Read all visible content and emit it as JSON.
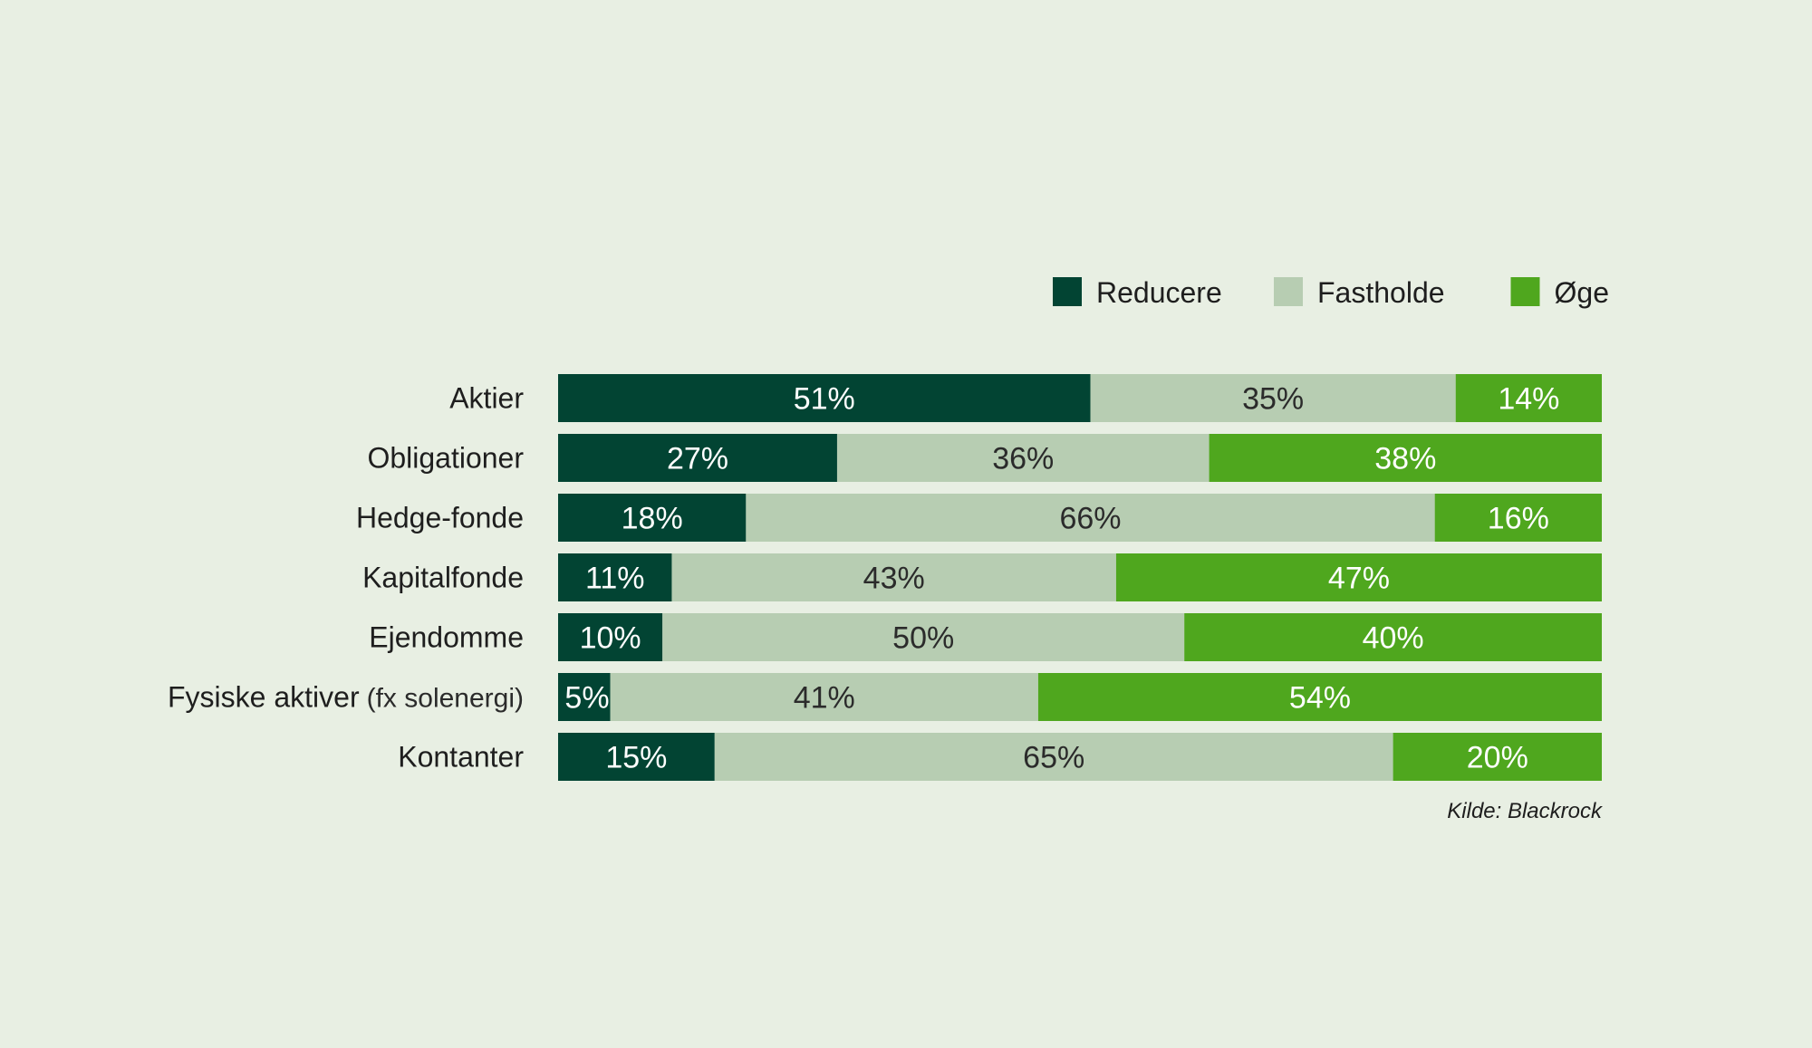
{
  "chart_data": {
    "type": "bar",
    "orientation": "horizontal",
    "stacked": true,
    "unit": "%",
    "categories": [
      "Aktier",
      "Obligationer",
      "Hedge-fonde",
      "Kapitalfonde",
      "Ejendomme",
      "Fysiske aktiver",
      "Kontanter"
    ],
    "category_notes": [
      "",
      "",
      "",
      "",
      "",
      "(fx solenergi)",
      ""
    ],
    "series": [
      {
        "name": "Reducere",
        "color": "#024433",
        "label_color": "#ffffff",
        "values": [
          51,
          27,
          18,
          11,
          10,
          5,
          15
        ]
      },
      {
        "name": "Fastholde",
        "color": "#b7cdb2",
        "label_color": "#2b2b2b",
        "values": [
          35,
          36,
          66,
          43,
          50,
          41,
          65
        ]
      },
      {
        "name": "Øge",
        "color": "#4fa71e",
        "label_color": "#ffffff",
        "values": [
          14,
          38,
          16,
          47,
          40,
          54,
          20
        ]
      }
    ],
    "value_labels": [
      [
        "51%",
        "35%",
        "14%"
      ],
      [
        "27%",
        "36%",
        "38%"
      ],
      [
        "18%",
        "66%",
        "16%"
      ],
      [
        "11%",
        "43%",
        "47%"
      ],
      [
        "10%",
        "50%",
        "40%"
      ],
      [
        "5%",
        "41%",
        "54%"
      ],
      [
        "15%",
        "65%",
        "20%"
      ]
    ],
    "legend_position": "top-right",
    "grid": false,
    "source": "Kilde: Blackrock"
  }
}
